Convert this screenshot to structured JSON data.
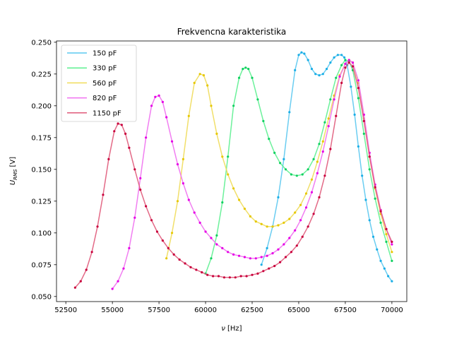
{
  "chart_data": {
    "type": "line",
    "title": "Frekvencna karakteristika",
    "xlabel_symbol": "ν",
    "xlabel_unit": "[Hz]",
    "ylabel_main": "U",
    "ylabel_sub": "RMS",
    "ylabel_unit": "[V]",
    "xlim": [
      52000,
      70800
    ],
    "ylim": [
      0.046,
      0.251
    ],
    "xticks": [
      52500,
      55000,
      57500,
      60000,
      62500,
      65000,
      67500,
      70000
    ],
    "xtick_labels": [
      "52500",
      "55000",
      "57500",
      "60000",
      "62500",
      "65000",
      "67500",
      "70000"
    ],
    "yticks": [
      0.05,
      0.075,
      0.1,
      0.125,
      0.15,
      0.175,
      0.2,
      0.225,
      0.25
    ],
    "ytick_labels": [
      "0.050",
      "0.075",
      "0.100",
      "0.125",
      "0.150",
      "0.175",
      "0.200",
      "0.225",
      "0.250"
    ],
    "grid": false,
    "legend_position": "top-left",
    "series": [
      {
        "name": "150 pF",
        "line_color": "#5bc8f0",
        "marker_color": "#1aaee6",
        "x": [
          63000,
          63300,
          63600,
          63900,
          64200,
          64500,
          64800,
          65000,
          65150,
          65300,
          65500,
          65700,
          65900,
          66100,
          66300,
          66500,
          66700,
          66900,
          67100,
          67300,
          67450,
          67600,
          67800,
          68000,
          68200,
          68400,
          68600,
          68800,
          69000,
          69200,
          69400,
          69600,
          69800,
          70000
        ],
        "y": [
          0.075,
          0.088,
          0.105,
          0.128,
          0.158,
          0.195,
          0.228,
          0.24,
          0.242,
          0.241,
          0.236,
          0.229,
          0.225,
          0.224,
          0.225,
          0.229,
          0.234,
          0.238,
          0.24,
          0.24,
          0.238,
          0.232,
          0.215,
          0.193,
          0.168,
          0.145,
          0.126,
          0.11,
          0.097,
          0.087,
          0.078,
          0.072,
          0.066,
          0.062
        ]
      },
      {
        "name": "330 pF",
        "line_color": "#5cf090",
        "marker_color": "#10d060",
        "x": [
          60000,
          60300,
          60600,
          60900,
          61200,
          61500,
          61800,
          62000,
          62150,
          62300,
          62500,
          62800,
          63100,
          63400,
          63700,
          64000,
          64300,
          64600,
          64900,
          65200,
          65500,
          65800,
          66100,
          66400,
          66700,
          67000,
          67300,
          67500,
          67700,
          67900,
          68200,
          68500,
          68800,
          69100,
          69400,
          69700,
          70000
        ],
        "y": [
          0.068,
          0.08,
          0.098,
          0.124,
          0.16,
          0.2,
          0.222,
          0.229,
          0.23,
          0.229,
          0.222,
          0.205,
          0.188,
          0.174,
          0.163,
          0.155,
          0.15,
          0.146,
          0.145,
          0.146,
          0.15,
          0.158,
          0.17,
          0.187,
          0.205,
          0.222,
          0.232,
          0.236,
          0.235,
          0.228,
          0.206,
          0.178,
          0.15,
          0.127,
          0.108,
          0.093,
          0.078
        ]
      },
      {
        "name": "560 pF",
        "line_color": "#f0dc5a",
        "marker_color": "#e6c800",
        "x": [
          57900,
          58200,
          58500,
          58800,
          59100,
          59400,
          59700,
          59900,
          60100,
          60300,
          60600,
          60900,
          61200,
          61500,
          61800,
          62100,
          62400,
          62700,
          63000,
          63300,
          63600,
          63900,
          64200,
          64500,
          64800,
          65100,
          65400,
          65700,
          66000,
          66300,
          66600,
          66900,
          67200,
          67500,
          67700,
          67900,
          68200,
          68500,
          68800,
          69100,
          69400,
          69700,
          70000
        ],
        "y": [
          0.08,
          0.1,
          0.125,
          0.158,
          0.192,
          0.218,
          0.225,
          0.224,
          0.216,
          0.2,
          0.178,
          0.16,
          0.146,
          0.135,
          0.126,
          0.119,
          0.113,
          0.109,
          0.107,
          0.105,
          0.105,
          0.106,
          0.108,
          0.111,
          0.116,
          0.122,
          0.131,
          0.142,
          0.156,
          0.172,
          0.19,
          0.208,
          0.224,
          0.233,
          0.236,
          0.234,
          0.218,
          0.19,
          0.16,
          0.135,
          0.115,
          0.099,
          0.085
        ]
      },
      {
        "name": "820 pF",
        "line_color": "#f070f0",
        "marker_color": "#e600e6",
        "x": [
          55000,
          55300,
          55600,
          55900,
          56200,
          56500,
          56800,
          57100,
          57300,
          57500,
          57700,
          57900,
          58200,
          58500,
          58800,
          59100,
          59400,
          59700,
          60000,
          60300,
          60600,
          60900,
          61200,
          61500,
          61800,
          62100,
          62400,
          62700,
          63000,
          63300,
          63600,
          63900,
          64200,
          64500,
          64800,
          65100,
          65400,
          65700,
          66000,
          66300,
          66600,
          66900,
          67200,
          67500,
          67700,
          67900,
          68200,
          68500,
          68800,
          69100,
          69400,
          69700,
          70000
        ],
        "y": [
          0.056,
          0.062,
          0.072,
          0.088,
          0.112,
          0.143,
          0.175,
          0.2,
          0.207,
          0.208,
          0.203,
          0.191,
          0.172,
          0.154,
          0.139,
          0.126,
          0.116,
          0.108,
          0.101,
          0.096,
          0.091,
          0.088,
          0.085,
          0.083,
          0.082,
          0.081,
          0.08,
          0.08,
          0.081,
          0.082,
          0.084,
          0.087,
          0.091,
          0.096,
          0.102,
          0.11,
          0.12,
          0.132,
          0.147,
          0.164,
          0.184,
          0.205,
          0.223,
          0.233,
          0.236,
          0.234,
          0.22,
          0.193,
          0.163,
          0.138,
          0.118,
          0.103,
          0.091
        ]
      },
      {
        "name": "1150 pF",
        "line_color": "#e05a7a",
        "marker_color": "#c8003c",
        "x": [
          53000,
          53300,
          53600,
          53900,
          54200,
          54500,
          54800,
          55100,
          55300,
          55500,
          55700,
          55900,
          56200,
          56500,
          56800,
          57100,
          57400,
          57700,
          58000,
          58300,
          58600,
          58900,
          59200,
          59500,
          59800,
          60100,
          60400,
          60700,
          61000,
          61300,
          61600,
          61900,
          62200,
          62500,
          62800,
          63100,
          63400,
          63700,
          64000,
          64300,
          64600,
          64900,
          65200,
          65500,
          65800,
          66100,
          66400,
          66700,
          67000,
          67300,
          67500,
          67700,
          67900,
          68200,
          68500,
          68800,
          69100,
          69400,
          69700,
          70000
        ],
        "y": [
          0.057,
          0.062,
          0.071,
          0.085,
          0.105,
          0.13,
          0.158,
          0.18,
          0.186,
          0.185,
          0.178,
          0.167,
          0.15,
          0.134,
          0.121,
          0.11,
          0.101,
          0.094,
          0.088,
          0.083,
          0.079,
          0.076,
          0.073,
          0.071,
          0.069,
          0.067,
          0.066,
          0.066,
          0.065,
          0.065,
          0.065,
          0.066,
          0.066,
          0.067,
          0.068,
          0.07,
          0.072,
          0.074,
          0.077,
          0.081,
          0.085,
          0.09,
          0.097,
          0.105,
          0.115,
          0.128,
          0.145,
          0.166,
          0.192,
          0.218,
          0.23,
          0.234,
          0.231,
          0.214,
          0.188,
          0.16,
          0.136,
          0.117,
          0.103,
          0.093
        ]
      }
    ]
  }
}
